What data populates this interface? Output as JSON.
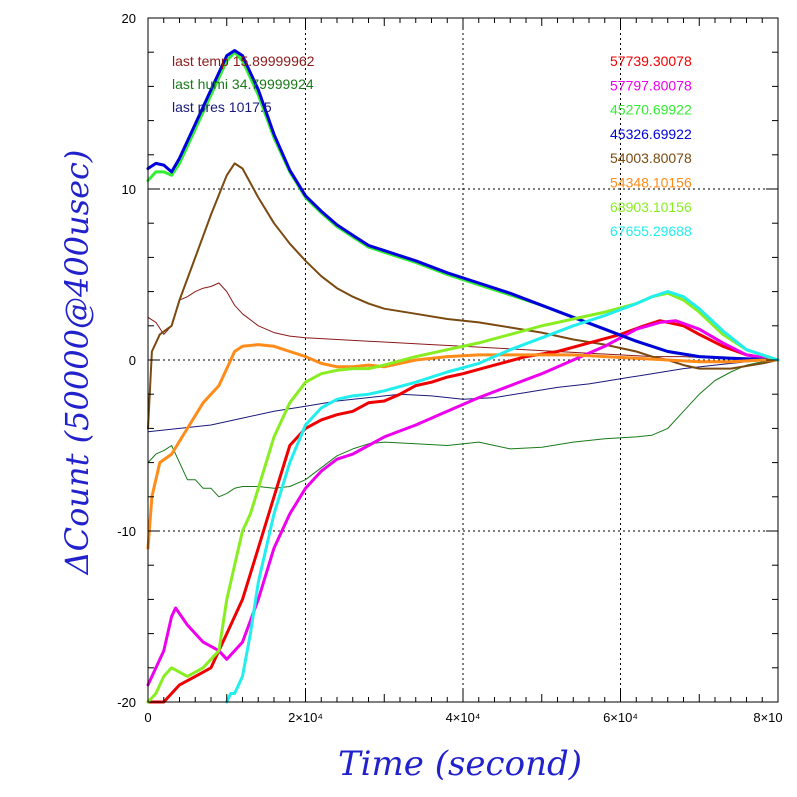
{
  "chart_data": {
    "type": "line",
    "xlabel": "Time (second)",
    "ylabel": "ΔCount (50000@400usec)",
    "xlim": [
      0,
      80000
    ],
    "ylim": [
      -20,
      20
    ],
    "grid": true,
    "x_ticks": [
      {
        "value": 0,
        "label": "0"
      },
      {
        "value": 20000,
        "label": "2×10⁴"
      },
      {
        "value": 40000,
        "label": "4×10⁴"
      },
      {
        "value": 60000,
        "label": "6×10⁴"
      },
      {
        "value": 80000,
        "label": "8×10"
      }
    ],
    "y_ticks": [
      {
        "value": -20,
        "label": "-20"
      },
      {
        "value": -10,
        "label": "-10"
      },
      {
        "value": 0,
        "label": "0"
      },
      {
        "value": 10,
        "label": "10"
      },
      {
        "value": 20,
        "label": "20"
      }
    ],
    "annotations_left": [
      {
        "text": "last temp 15.89999962",
        "color": "#8b1a1a"
      },
      {
        "text": "last humi 34.79999924",
        "color": "#1a7a1a"
      },
      {
        "text": "last pres 1017.5",
        "color": "#1a1a7a"
      }
    ],
    "series": [
      {
        "name": "57739.30078",
        "color": "#ee0000",
        "width": 3,
        "x": [
          0,
          2000,
          4000,
          6000,
          8000,
          10000,
          12000,
          14000,
          16000,
          18000,
          20000,
          22000,
          24000,
          26000,
          28000,
          30000,
          32000,
          34000,
          36000,
          38000,
          40000,
          44000,
          48000,
          52000,
          56000,
          60000,
          63000,
          65000,
          68000,
          70000,
          73000,
          76000,
          80000
        ],
        "y": [
          -20,
          -20,
          -19,
          -18.5,
          -18,
          -16,
          -14,
          -11,
          -8,
          -5,
          -4,
          -3.5,
          -3.2,
          -3,
          -2.5,
          -2.4,
          -2,
          -1.5,
          -1.3,
          -1,
          -0.8,
          -0.3,
          0.2,
          0.5,
          1,
          1.5,
          2,
          2.3,
          2,
          1.5,
          0.8,
          0.3,
          0
        ]
      },
      {
        "name": "57797.80078",
        "color": "#ee00ee",
        "width": 3,
        "x": [
          0,
          2000,
          3000,
          3500,
          5000,
          7000,
          9000,
          10000,
          11000,
          12000,
          14000,
          16000,
          18000,
          20000,
          22000,
          24000,
          26000,
          28000,
          30000,
          34000,
          38000,
          42000,
          46000,
          50000,
          54000,
          58000,
          62000,
          65000,
          67000,
          70000,
          73000,
          76000,
          80000
        ],
        "y": [
          -19,
          -17,
          -15,
          -14.5,
          -15.5,
          -16.5,
          -17,
          -17.5,
          -17,
          -16.5,
          -14,
          -11,
          -9,
          -7.5,
          -6.5,
          -5.8,
          -5.5,
          -5,
          -4.5,
          -3.8,
          -3,
          -2.2,
          -1.5,
          -0.8,
          0,
          0.8,
          1.8,
          2.2,
          2.3,
          1.8,
          1,
          0.3,
          0
        ]
      },
      {
        "name": "45270.69922",
        "color": "#33ee33",
        "width": 3,
        "x": [
          0,
          1000,
          2000,
          3000,
          4000,
          6000,
          8000,
          10000,
          11000,
          12000,
          14000,
          16000,
          18000,
          20000,
          22000,
          24000,
          26000,
          28000,
          30000,
          34000,
          38000,
          42000,
          46000,
          50000,
          54000,
          58000,
          62000,
          66000,
          70000,
          74000,
          77000,
          80000
        ],
        "y": [
          10.5,
          11,
          11,
          10.8,
          11.5,
          13.5,
          15.5,
          17.5,
          18,
          17.5,
          15.5,
          13,
          11,
          9.5,
          8.6,
          7.8,
          7.2,
          6.6,
          6.3,
          5.7,
          5,
          4.4,
          3.8,
          3.2,
          2.5,
          1.8,
          1.1,
          0.5,
          0.2,
          0.1,
          0.05,
          0
        ]
      },
      {
        "name": "45326.69922",
        "color": "#0000dd",
        "width": 3,
        "x": [
          0,
          1000,
          2000,
          3000,
          4000,
          6000,
          8000,
          10000,
          11000,
          12000,
          14000,
          16000,
          18000,
          20000,
          22000,
          24000,
          26000,
          28000,
          30000,
          34000,
          38000,
          42000,
          46000,
          50000,
          54000,
          58000,
          62000,
          66000,
          70000,
          74000,
          77000,
          80000
        ],
        "y": [
          11.2,
          11.5,
          11.4,
          11,
          11.8,
          13.8,
          15.8,
          17.8,
          18.1,
          17.8,
          15.8,
          13.2,
          11.1,
          9.6,
          8.7,
          7.9,
          7.3,
          6.7,
          6.4,
          5.8,
          5.1,
          4.5,
          3.9,
          3.2,
          2.5,
          1.8,
          1.1,
          0.5,
          0.2,
          0.1,
          0.05,
          0
        ]
      },
      {
        "name": "54003.80078",
        "color": "#7a4a10",
        "width": 2,
        "x": [
          0,
          500,
          1500,
          3000,
          4000,
          6000,
          8000,
          10000,
          11000,
          12000,
          14000,
          16000,
          18000,
          20000,
          22000,
          24000,
          26000,
          28000,
          30000,
          34000,
          38000,
          42000,
          46000,
          50000,
          54000,
          58000,
          62000,
          64000,
          66000,
          68000,
          70000,
          74000,
          78000,
          80000
        ],
        "y": [
          -4,
          0.5,
          1.5,
          2,
          3.5,
          6,
          8.5,
          10.8,
          11.5,
          11.2,
          9.5,
          8,
          6.8,
          5.8,
          4.9,
          4.2,
          3.7,
          3.3,
          3,
          2.7,
          2.4,
          2.2,
          1.9,
          1.6,
          1.2,
          0.9,
          0.5,
          0.2,
          0,
          -0.3,
          -0.5,
          -0.5,
          -0.2,
          0
        ]
      },
      {
        "name": "54348.10156",
        "color": "#ff8c1a",
        "width": 3,
        "x": [
          0,
          500,
          1500,
          3000,
          5000,
          7000,
          9000,
          10000,
          11000,
          12000,
          14000,
          16000,
          18000,
          20000,
          22000,
          24000,
          26000,
          28000,
          30000,
          32000,
          34000,
          38000,
          42000,
          46000,
          50000,
          54000,
          58000,
          62000,
          66000,
          70000,
          74000,
          78000,
          80000
        ],
        "y": [
          -11,
          -8,
          -6,
          -5.5,
          -4,
          -2.5,
          -1.5,
          -0.5,
          0.5,
          0.8,
          0.9,
          0.8,
          0.5,
          0.2,
          -0.2,
          -0.4,
          -0.4,
          -0.3,
          -0.4,
          -0.2,
          0,
          0.2,
          0.3,
          0.3,
          0.3,
          0.3,
          0.2,
          0.1,
          0,
          -0.1,
          -0.1,
          0,
          0
        ]
      },
      {
        "name": "68903.10156",
        "color": "#88ee22",
        "width": 3,
        "x": [
          0,
          1000,
          2000,
          3000,
          5000,
          7000,
          9000,
          10000,
          11000,
          12000,
          13000,
          14000,
          16000,
          18000,
          20000,
          22000,
          24000,
          26000,
          28000,
          30000,
          34000,
          38000,
          42000,
          46000,
          50000,
          54000,
          58000,
          62000,
          64000,
          66000,
          68000,
          70000,
          73000,
          76000,
          80000
        ],
        "y": [
          -20,
          -19.5,
          -18.5,
          -18,
          -18.5,
          -18,
          -17,
          -14,
          -12,
          -10,
          -9,
          -7.5,
          -4.5,
          -2.5,
          -1.3,
          -0.8,
          -0.6,
          -0.5,
          -0.5,
          -0.3,
          0.2,
          0.6,
          1,
          1.5,
          2,
          2.4,
          2.8,
          3.3,
          3.7,
          3.9,
          3.5,
          2.8,
          1.5,
          0.6,
          0
        ]
      },
      {
        "name": "67655.29688",
        "color": "#22eeee",
        "width": 3,
        "x": [
          10000,
          10500,
          11000,
          12000,
          13000,
          14000,
          16000,
          18000,
          20000,
          22000,
          24000,
          26000,
          28000,
          30000,
          34000,
          38000,
          42000,
          46000,
          50000,
          54000,
          58000,
          62000,
          64000,
          66000,
          68000,
          70000,
          73000,
          76000,
          80000
        ],
        "y": [
          -20,
          -19.5,
          -19.5,
          -18.5,
          -16,
          -13,
          -9,
          -6,
          -3.8,
          -2.8,
          -2.3,
          -2.1,
          -2,
          -1.8,
          -1.3,
          -0.7,
          -0.2,
          0.6,
          1.3,
          2,
          2.6,
          3.3,
          3.7,
          4,
          3.7,
          3,
          1.7,
          0.6,
          0
        ]
      },
      {
        "name": "",
        "color": "#8b1a1a",
        "width": 1,
        "x": [
          0,
          1000,
          2000,
          3000,
          4000,
          5000,
          6000,
          7000,
          8000,
          9000,
          10000,
          11000,
          12000,
          14000,
          16000,
          18000,
          20000,
          24000,
          28000,
          32000,
          36000,
          40000,
          44000,
          48000,
          52000,
          56000,
          60000,
          64000,
          68000,
          72000,
          76000,
          80000
        ],
        "y": [
          2.5,
          2.2,
          1.5,
          2,
          3.5,
          3.7,
          4,
          4.2,
          4.3,
          4.5,
          4,
          3.2,
          2.7,
          2,
          1.6,
          1.4,
          1.3,
          1.2,
          1.1,
          1,
          0.9,
          0.8,
          0.7,
          0.6,
          0.5,
          0.4,
          0.3,
          0.2,
          0.2,
          0.1,
          0.05,
          0
        ]
      },
      {
        "name": "",
        "color": "#1a7a1a",
        "width": 1,
        "x": [
          0,
          1000,
          2000,
          3000,
          4000,
          5000,
          6000,
          7000,
          8000,
          9000,
          10000,
          11000,
          12000,
          14000,
          16000,
          18000,
          20000,
          22000,
          24000,
          26000,
          28000,
          30000,
          34000,
          38000,
          42000,
          46000,
          50000,
          54000,
          58000,
          62000,
          64000,
          66000,
          68000,
          70000,
          72000,
          74000,
          76000,
          78000,
          80000
        ],
        "y": [
          -6,
          -5.5,
          -5.3,
          -5,
          -6,
          -7,
          -7,
          -7.5,
          -7.5,
          -8,
          -7.8,
          -7.5,
          -7.4,
          -7.4,
          -7.5,
          -7.4,
          -7,
          -6.3,
          -5.6,
          -5.2,
          -4.9,
          -4.8,
          -4.9,
          -5,
          -4.8,
          -5.2,
          -5.1,
          -4.8,
          -4.6,
          -4.5,
          -4.4,
          -4,
          -3,
          -2,
          -1.2,
          -0.7,
          -0.3,
          -0.1,
          0
        ]
      },
      {
        "name": "",
        "color": "#1a1a7a",
        "width": 1,
        "x": [
          0,
          4000,
          8000,
          12000,
          16000,
          20000,
          24000,
          28000,
          32000,
          36000,
          40000,
          44000,
          48000,
          52000,
          56000,
          60000,
          64000,
          68000,
          72000,
          76000,
          80000
        ],
        "y": [
          -4.2,
          -4,
          -3.8,
          -3.4,
          -3,
          -2.7,
          -2.4,
          -2.2,
          -2,
          -2.1,
          -2.3,
          -2.2,
          -1.9,
          -1.6,
          -1.4,
          -1.1,
          -0.8,
          -0.5,
          -0.3,
          -0.1,
          0
        ]
      }
    ]
  }
}
